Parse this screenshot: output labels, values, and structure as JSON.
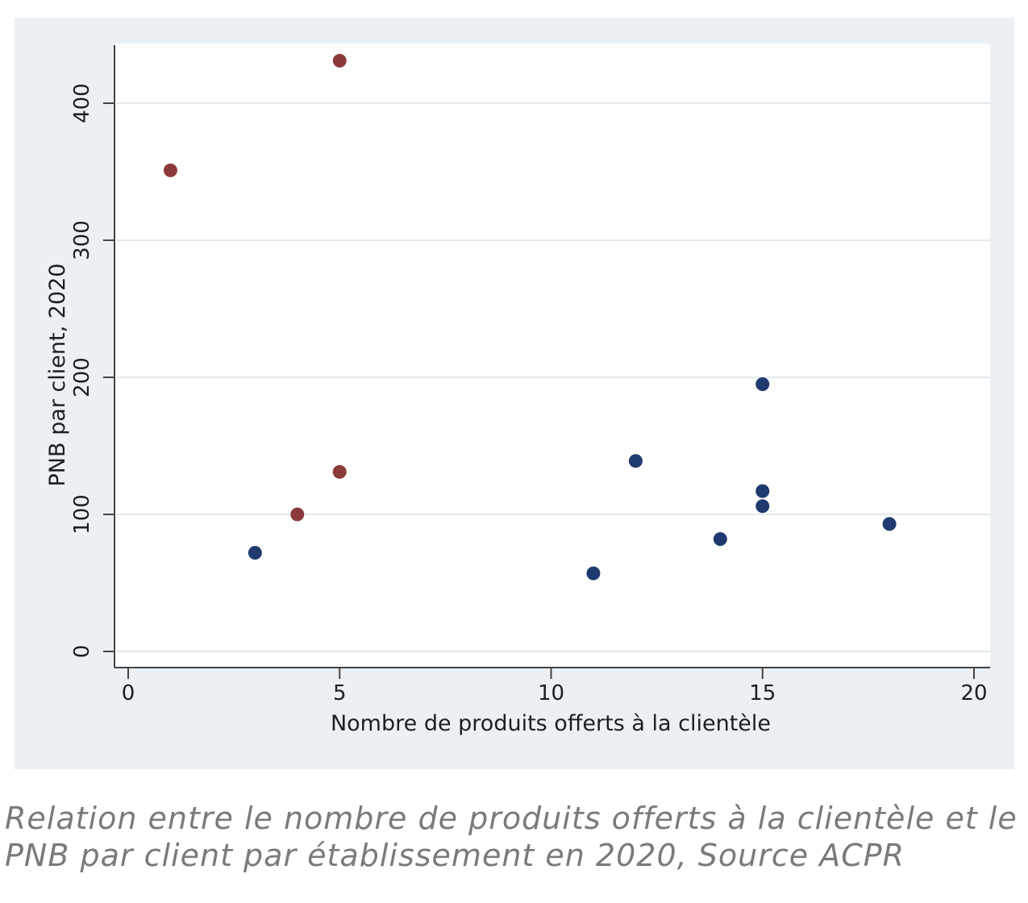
{
  "caption": "Relation entre le nombre de produits offerts à la clientèle et le PNB par client par établissement en 2020, Source ACPR",
  "chart_data": {
    "type": "scatter",
    "title": "",
    "xlabel": "Nombre de produits offerts à la clientèle",
    "ylabel": "PNB par client, 2020",
    "xlim": [
      0,
      20
    ],
    "ylim": [
      0,
      430
    ],
    "xticks": [
      0,
      5,
      10,
      15,
      20
    ],
    "yticks": [
      0,
      100,
      200,
      300,
      400
    ],
    "grid": "horizontal",
    "legend": "none",
    "series": [
      {
        "color": "#8b3a3a",
        "points": [
          {
            "x": 1,
            "y": 351
          },
          {
            "x": 5,
            "y": 431
          },
          {
            "x": 5,
            "y": 131
          },
          {
            "x": 4,
            "y": 100
          }
        ]
      },
      {
        "color": "#1f3a6e",
        "points": [
          {
            "x": 3,
            "y": 72
          },
          {
            "x": 11,
            "y": 57
          },
          {
            "x": 12,
            "y": 139
          },
          {
            "x": 14,
            "y": 82
          },
          {
            "x": 15,
            "y": 195
          },
          {
            "x": 15,
            "y": 117
          },
          {
            "x": 15,
            "y": 106
          },
          {
            "x": 18,
            "y": 93
          }
        ]
      }
    ]
  }
}
